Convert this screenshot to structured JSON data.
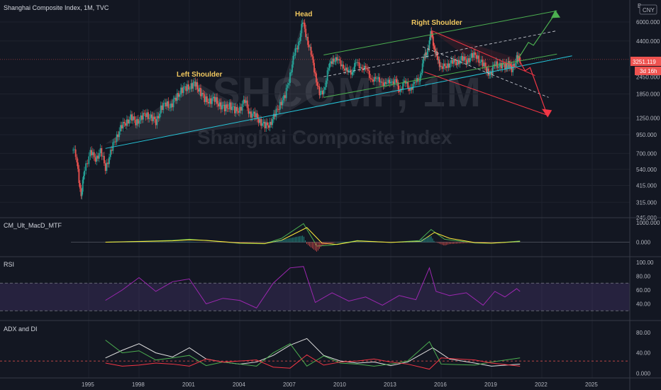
{
  "header": {
    "title": "Shanghai Composite Index, 1M, TVC"
  },
  "watermark": {
    "symbol": "SHCOMP, 1M",
    "name": "Shanghai Composite Index"
  },
  "price_badges": {
    "currency": "CNY",
    "top_letter": "B",
    "last_price": "3251.119",
    "countdown": "3d 16h"
  },
  "annotations": {
    "left_shoulder": "Left Shoulder",
    "head": "Head",
    "right_shoulder": "Right Shoulder"
  },
  "panes": {
    "macd_label": "CM_Ult_MacD_MTF",
    "rsi_label": "RSI",
    "adx_label": "ADX and DI"
  },
  "colors": {
    "background": "#131722",
    "up": "#26a69a",
    "down": "#ef5350",
    "neckline": "#26c6da",
    "channel_up": "#4caf50",
    "channel_down": "#f23645",
    "rsi": "#9c27b0",
    "adx": "#e0e0e0"
  },
  "chart_data": [
    {
      "type": "candlestick",
      "pane": "price",
      "title": "Shanghai Composite Index, 1M, TVC",
      "scale": "log",
      "x_ticks": [
        "1995",
        "1998",
        "2001",
        "2004",
        "2007",
        "2010",
        "2013",
        "2016",
        "2019",
        "2022",
        "2025"
      ],
      "y_ticks": [
        "6000.000",
        "4400.000",
        "3251.119",
        "2450.000",
        "1850.000",
        "1250.000",
        "950.000",
        "700.000",
        "540.000",
        "415.000",
        "315.000",
        "245.000"
      ],
      "series_points": [
        {
          "x": 1994.0,
          "y": 780
        },
        {
          "x": 1994.3,
          "y": 640
        },
        {
          "x": 1994.55,
          "y": 330
        },
        {
          "x": 1994.75,
          "y": 560
        },
        {
          "x": 1995.1,
          "y": 700
        },
        {
          "x": 1995.4,
          "y": 650
        },
        {
          "x": 1995.7,
          "y": 720
        },
        {
          "x": 1996.0,
          "y": 560
        },
        {
          "x": 1996.3,
          "y": 700
        },
        {
          "x": 1996.6,
          "y": 900
        },
        {
          "x": 1996.9,
          "y": 1050
        },
        {
          "x": 1997.2,
          "y": 1170
        },
        {
          "x": 1997.5,
          "y": 1250
        },
        {
          "x": 1997.8,
          "y": 1180
        },
        {
          "x": 1998.1,
          "y": 1230
        },
        {
          "x": 1998.4,
          "y": 1350
        },
        {
          "x": 1998.7,
          "y": 1250
        },
        {
          "x": 1999.0,
          "y": 1180
        },
        {
          "x": 1999.3,
          "y": 1450
        },
        {
          "x": 1999.6,
          "y": 1600
        },
        {
          "x": 1999.9,
          "y": 1500
        },
        {
          "x": 2000.2,
          "y": 1750
        },
        {
          "x": 2000.5,
          "y": 1950
        },
        {
          "x": 2000.8,
          "y": 2050
        },
        {
          "x": 2001.1,
          "y": 2100
        },
        {
          "x": 2001.35,
          "y": 2200
        },
        {
          "x": 2001.6,
          "y": 1950
        },
        {
          "x": 2001.9,
          "y": 1700
        },
        {
          "x": 2002.2,
          "y": 1650
        },
        {
          "x": 2002.5,
          "y": 1700
        },
        {
          "x": 2002.8,
          "y": 1550
        },
        {
          "x": 2003.1,
          "y": 1450
        },
        {
          "x": 2003.4,
          "y": 1550
        },
        {
          "x": 2003.7,
          "y": 1400
        },
        {
          "x": 2004.0,
          "y": 1450
        },
        {
          "x": 2004.3,
          "y": 1650
        },
        {
          "x": 2004.6,
          "y": 1350
        },
        {
          "x": 2004.9,
          "y": 1300
        },
        {
          "x": 2005.2,
          "y": 1200
        },
        {
          "x": 2005.5,
          "y": 1080
        },
        {
          "x": 2005.8,
          "y": 1150
        },
        {
          "x": 2006.1,
          "y": 1300
        },
        {
          "x": 2006.4,
          "y": 1600
        },
        {
          "x": 2006.7,
          "y": 1750
        },
        {
          "x": 2007.0,
          "y": 2600
        },
        {
          "x": 2007.25,
          "y": 3500
        },
        {
          "x": 2007.5,
          "y": 4300
        },
        {
          "x": 2007.75,
          "y": 5950
        },
        {
          "x": 2008.0,
          "y": 4700
        },
        {
          "x": 2008.25,
          "y": 3500
        },
        {
          "x": 2008.5,
          "y": 2600
        },
        {
          "x": 2008.75,
          "y": 1800
        },
        {
          "x": 2009.0,
          "y": 2000
        },
        {
          "x": 2009.3,
          "y": 2800
        },
        {
          "x": 2009.55,
          "y": 3350
        },
        {
          "x": 2009.8,
          "y": 3150
        },
        {
          "x": 2010.1,
          "y": 3050
        },
        {
          "x": 2010.4,
          "y": 2600
        },
        {
          "x": 2010.7,
          "y": 2700
        },
        {
          "x": 2010.9,
          "y": 3000
        },
        {
          "x": 2011.2,
          "y": 2950
        },
        {
          "x": 2011.5,
          "y": 2750
        },
        {
          "x": 2011.8,
          "y": 2450
        },
        {
          "x": 2012.1,
          "y": 2300
        },
        {
          "x": 2012.4,
          "y": 2350
        },
        {
          "x": 2012.7,
          "y": 2100
        },
        {
          "x": 2013.0,
          "y": 2350
        },
        {
          "x": 2013.3,
          "y": 2250
        },
        {
          "x": 2013.5,
          "y": 2000
        },
        {
          "x": 2013.8,
          "y": 2200
        },
        {
          "x": 2014.1,
          "y": 2050
        },
        {
          "x": 2014.4,
          "y": 2150
        },
        {
          "x": 2014.7,
          "y": 2400
        },
        {
          "x": 2014.95,
          "y": 3200
        },
        {
          "x": 2015.15,
          "y": 3700
        },
        {
          "x": 2015.35,
          "y": 4600
        },
        {
          "x": 2015.45,
          "y": 5150
        },
        {
          "x": 2015.6,
          "y": 3650
        },
        {
          "x": 2015.8,
          "y": 3400
        },
        {
          "x": 2016.0,
          "y": 2750
        },
        {
          "x": 2016.3,
          "y": 3000
        },
        {
          "x": 2016.6,
          "y": 3050
        },
        {
          "x": 2016.9,
          "y": 3150
        },
        {
          "x": 2017.2,
          "y": 3250
        },
        {
          "x": 2017.5,
          "y": 3200
        },
        {
          "x": 2017.8,
          "y": 3400
        },
        {
          "x": 2018.1,
          "y": 3500
        },
        {
          "x": 2018.4,
          "y": 3050
        },
        {
          "x": 2018.7,
          "y": 2800
        },
        {
          "x": 2018.95,
          "y": 2500
        },
        {
          "x": 2019.2,
          "y": 3100
        },
        {
          "x": 2019.5,
          "y": 2900
        },
        {
          "x": 2019.8,
          "y": 2950
        },
        {
          "x": 2020.0,
          "y": 3000
        },
        {
          "x": 2020.2,
          "y": 2800
        },
        {
          "x": 2020.5,
          "y": 3300
        },
        {
          "x": 2020.7,
          "y": 3250
        }
      ]
    },
    {
      "type": "line",
      "pane": "macd",
      "ylim": [
        -600,
        1000
      ],
      "y_ticks": [
        "1000.000",
        "0.000"
      ],
      "series": [
        {
          "color": "#4caf50",
          "points": [
            [
              1996,
              0
            ],
            [
              1998,
              40
            ],
            [
              2000,
              90
            ],
            [
              2001,
              150
            ],
            [
              2002,
              80
            ],
            [
              2004,
              -60
            ],
            [
              2005.5,
              -80
            ],
            [
              2006.5,
              200
            ],
            [
              2007.8,
              950
            ],
            [
              2008.6,
              -200
            ],
            [
              2009.5,
              -150
            ],
            [
              2011,
              80
            ],
            [
              2013,
              -20
            ],
            [
              2014.7,
              80
            ],
            [
              2015.4,
              650
            ],
            [
              2016.2,
              150
            ],
            [
              2018,
              -40
            ],
            [
              2019,
              -60
            ],
            [
              2020.7,
              60
            ]
          ]
        },
        {
          "color": "#ffeb3b",
          "points": [
            [
              1996,
              0
            ],
            [
              1998,
              30
            ],
            [
              2000,
              70
            ],
            [
              2001,
              120
            ],
            [
              2002,
              90
            ],
            [
              2004,
              -40
            ],
            [
              2005.5,
              -70
            ],
            [
              2006.5,
              100
            ],
            [
              2008,
              750
            ],
            [
              2008.9,
              -50
            ],
            [
              2009.8,
              -120
            ],
            [
              2011,
              60
            ],
            [
              2013,
              -10
            ],
            [
              2014.8,
              40
            ],
            [
              2015.6,
              500
            ],
            [
              2016.5,
              200
            ],
            [
              2018,
              -20
            ],
            [
              2019,
              -50
            ],
            [
              2020.7,
              30
            ]
          ]
        }
      ]
    },
    {
      "type": "line",
      "pane": "rsi",
      "ylim": [
        20,
        100
      ],
      "y_ticks": [
        "100.00",
        "80.00",
        "60.00",
        "40.00"
      ],
      "overbought": 70,
      "oversold": 30,
      "series": [
        {
          "name": "RSI",
          "color": "#9c27b0",
          "points": [
            [
              1996,
              45
            ],
            [
              1997,
              60
            ],
            [
              1998,
              78
            ],
            [
              1999,
              58
            ],
            [
              2000,
              72
            ],
            [
              2001,
              76
            ],
            [
              2002,
              40
            ],
            [
              2003,
              48
            ],
            [
              2004,
              45
            ],
            [
              2005,
              34
            ],
            [
              2006,
              70
            ],
            [
              2007,
              92
            ],
            [
              2007.8,
              94
            ],
            [
              2008.5,
              42
            ],
            [
              2009.5,
              56
            ],
            [
              2010.5,
              44
            ],
            [
              2011.5,
              50
            ],
            [
              2012.5,
              38
            ],
            [
              2013.5,
              52
            ],
            [
              2014.5,
              46
            ],
            [
              2015.3,
              92
            ],
            [
              2015.7,
              58
            ],
            [
              2016.5,
              52
            ],
            [
              2017.5,
              56
            ],
            [
              2018.5,
              38
            ],
            [
              2019.2,
              58
            ],
            [
              2019.8,
              50
            ],
            [
              2020.5,
              62
            ],
            [
              2020.7,
              58
            ]
          ]
        }
      ]
    },
    {
      "type": "line",
      "pane": "adx",
      "ylim": [
        -5,
        95
      ],
      "y_ticks": [
        "80.00",
        "40.00",
        "0.000"
      ],
      "dashed_level": 24,
      "series": [
        {
          "name": "ADX",
          "color": "#e0e0e0",
          "points": [
            [
              1996,
              30
            ],
            [
              1997,
              45
            ],
            [
              1998,
              58
            ],
            [
              1999,
              40
            ],
            [
              2000,
              32
            ],
            [
              2001,
              50
            ],
            [
              2002,
              28
            ],
            [
              2003,
              22
            ],
            [
              2004,
              18
            ],
            [
              2005,
              22
            ],
            [
              2006,
              35
            ],
            [
              2007,
              55
            ],
            [
              2008,
              68
            ],
            [
              2009,
              35
            ],
            [
              2010,
              24
            ],
            [
              2011,
              20
            ],
            [
              2012,
              22
            ],
            [
              2013,
              15
            ],
            [
              2014,
              22
            ],
            [
              2015.5,
              50
            ],
            [
              2016.5,
              28
            ],
            [
              2018,
              20
            ],
            [
              2019,
              14
            ],
            [
              2020.7,
              18
            ]
          ]
        },
        {
          "name": "+DI",
          "color": "#4caf50",
          "points": [
            [
              1996,
              65
            ],
            [
              1997,
              40
            ],
            [
              1998,
              44
            ],
            [
              1999,
              26
            ],
            [
              2000,
              30
            ],
            [
              2001,
              35
            ],
            [
              2002,
              15
            ],
            [
              2003,
              22
            ],
            [
              2004,
              18
            ],
            [
              2005,
              14
            ],
            [
              2006,
              40
            ],
            [
              2007,
              58
            ],
            [
              2008,
              14
            ],
            [
              2009,
              34
            ],
            [
              2010,
              20
            ],
            [
              2011,
              18
            ],
            [
              2012,
              14
            ],
            [
              2013,
              18
            ],
            [
              2014,
              24
            ],
            [
              2015.3,
              62
            ],
            [
              2016,
              18
            ],
            [
              2018,
              16
            ],
            [
              2019,
              22
            ],
            [
              2020.7,
              30
            ]
          ]
        },
        {
          "name": "-DI",
          "color": "#f23645",
          "points": [
            [
              1996,
              20
            ],
            [
              1997,
              14
            ],
            [
              1998,
              16
            ],
            [
              1999,
              20
            ],
            [
              2000,
              18
            ],
            [
              2001,
              14
            ],
            [
              2002,
              28
            ],
            [
              2003,
              22
            ],
            [
              2004,
              24
            ],
            [
              2005,
              26
            ],
            [
              2006,
              12
            ],
            [
              2007,
              10
            ],
            [
              2008,
              36
            ],
            [
              2009,
              16
            ],
            [
              2010,
              22
            ],
            [
              2011,
              24
            ],
            [
              2012,
              28
            ],
            [
              2013,
              22
            ],
            [
              2014,
              18
            ],
            [
              2015.3,
              8
            ],
            [
              2016,
              30
            ],
            [
              2018,
              26
            ],
            [
              2019,
              20
            ],
            [
              2020.7,
              14
            ]
          ]
        }
      ]
    }
  ]
}
